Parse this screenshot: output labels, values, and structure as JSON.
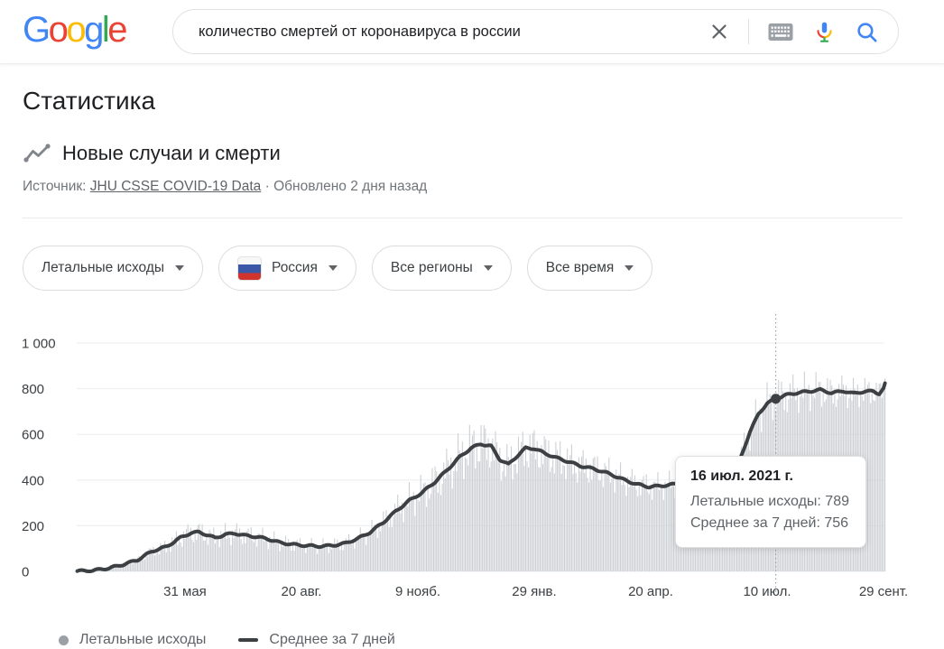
{
  "header": {
    "logo_letters": [
      {
        "ch": "G",
        "color": "#4285F4"
      },
      {
        "ch": "o",
        "color": "#EA4335"
      },
      {
        "ch": "o",
        "color": "#FBBC05"
      },
      {
        "ch": "g",
        "color": "#4285F4"
      },
      {
        "ch": "l",
        "color": "#34A853"
      },
      {
        "ch": "e",
        "color": "#EA4335"
      }
    ],
    "search": {
      "value": "количество смертей от коронавируса в россии"
    }
  },
  "page": {
    "title": "Статистика",
    "section_title": "Новые случаи и смерти",
    "source_prefix": "Источник:",
    "source_link": "JHU CSSE COVID-19 Data",
    "source_sep": "·",
    "updated": "Обновлено 2 дня назад"
  },
  "filters": [
    {
      "label": "Летальные исходы",
      "flag": false
    },
    {
      "label": "Россия",
      "flag": true
    },
    {
      "label": "Все регионы",
      "flag": false
    },
    {
      "label": "Все время",
      "flag": false
    }
  ],
  "flag_colors": {
    "white": "#f7f7f7",
    "blue": "#3a57a8",
    "red": "#d0342c"
  },
  "tooltip": {
    "date_label": "16 июл. 2021 г.",
    "rows": [
      {
        "label": "Летальные исходы",
        "value": "789"
      },
      {
        "label": "Среднее за 7 дней",
        "value": "756"
      }
    ]
  },
  "legend": [
    {
      "label": "Летальные исходы",
      "swatch": "dot",
      "color": "#9aa0a6"
    },
    {
      "label": "Среднее за 7 дней",
      "swatch": "line",
      "color": "#3c4043"
    }
  ],
  "chart_data": {
    "type": "area",
    "title": "Новые случаи и смерти (Летальные исходы, Россия, все время)",
    "ylim": [
      0,
      1000
    ],
    "yticks": [
      {
        "value": 0,
        "label": "0"
      },
      {
        "value": 200,
        "label": "200"
      },
      {
        "value": 400,
        "label": "400"
      },
      {
        "value": 600,
        "label": "600"
      },
      {
        "value": 800,
        "label": "800"
      },
      {
        "value": 1000,
        "label": "1 000"
      }
    ],
    "xticks": [
      {
        "label": "31 мая",
        "date": "2020-05-31"
      },
      {
        "label": "20 авг.",
        "date": "2020-08-20"
      },
      {
        "label": "9 нояб.",
        "date": "2020-11-09"
      },
      {
        "label": "29 янв.",
        "date": "2021-01-29"
      },
      {
        "label": "20 апр.",
        "date": "2021-04-20"
      },
      {
        "label": "10 июл.",
        "date": "2021-07-10"
      },
      {
        "label": "29 сент.",
        "date": "2021-09-29"
      }
    ],
    "x_range": [
      "2020-03-17",
      "2021-09-30"
    ],
    "series": [
      {
        "name": "Летальные исходы",
        "type": "bars",
        "color": "#ccd0d4"
      },
      {
        "name": "Среднее за 7 дней",
        "type": "line",
        "color": "#3c4043",
        "points": [
          [
            "2020-03-17",
            1
          ],
          [
            "2020-03-28",
            4
          ],
          [
            "2020-04-08",
            14
          ],
          [
            "2020-04-18",
            30
          ],
          [
            "2020-04-28",
            50
          ],
          [
            "2020-05-08",
            88
          ],
          [
            "2020-05-18",
            108
          ],
          [
            "2020-05-28",
            148
          ],
          [
            "2020-06-04",
            168
          ],
          [
            "2020-06-10",
            172
          ],
          [
            "2020-06-16",
            158
          ],
          [
            "2020-06-21",
            146
          ],
          [
            "2020-06-28",
            162
          ],
          [
            "2020-07-05",
            166
          ],
          [
            "2020-07-12",
            157
          ],
          [
            "2020-07-19",
            152
          ],
          [
            "2020-07-27",
            143
          ],
          [
            "2020-08-05",
            126
          ],
          [
            "2020-08-14",
            118
          ],
          [
            "2020-08-23",
            113
          ],
          [
            "2020-09-01",
            110
          ],
          [
            "2020-09-10",
            113
          ],
          [
            "2020-09-19",
            122
          ],
          [
            "2020-09-28",
            143
          ],
          [
            "2020-10-07",
            172
          ],
          [
            "2020-10-16",
            215
          ],
          [
            "2020-10-25",
            265
          ],
          [
            "2020-11-03",
            310
          ],
          [
            "2020-11-12",
            345
          ],
          [
            "2020-11-21",
            392
          ],
          [
            "2020-11-30",
            448
          ],
          [
            "2020-12-08",
            500
          ],
          [
            "2020-12-16",
            540
          ],
          [
            "2020-12-23",
            558
          ],
          [
            "2020-12-30",
            548
          ],
          [
            "2021-01-05",
            490
          ],
          [
            "2021-01-11",
            468
          ],
          [
            "2021-01-17",
            505
          ],
          [
            "2021-01-23",
            540
          ],
          [
            "2021-01-29",
            538
          ],
          [
            "2021-02-05",
            518
          ],
          [
            "2021-02-13",
            498
          ],
          [
            "2021-02-21",
            482
          ],
          [
            "2021-03-02",
            462
          ],
          [
            "2021-03-12",
            448
          ],
          [
            "2021-03-22",
            428
          ],
          [
            "2021-04-01",
            402
          ],
          [
            "2021-04-10",
            382
          ],
          [
            "2021-04-19",
            370
          ],
          [
            "2021-04-28",
            375
          ],
          [
            "2021-05-07",
            382
          ],
          [
            "2021-05-16",
            372
          ],
          [
            "2021-05-25",
            366
          ],
          [
            "2021-06-03",
            372
          ],
          [
            "2021-06-11",
            380
          ],
          [
            "2021-06-17",
            405
          ],
          [
            "2021-06-22",
            505
          ],
          [
            "2021-06-28",
            610
          ],
          [
            "2021-07-04",
            690
          ],
          [
            "2021-07-10",
            735
          ],
          [
            "2021-07-16",
            756
          ],
          [
            "2021-07-23",
            772
          ],
          [
            "2021-07-31",
            782
          ],
          [
            "2021-08-08",
            788
          ],
          [
            "2021-08-16",
            795
          ],
          [
            "2021-08-24",
            781
          ],
          [
            "2021-09-01",
            790
          ],
          [
            "2021-09-08",
            779
          ],
          [
            "2021-09-15",
            787
          ],
          [
            "2021-09-22",
            789
          ],
          [
            "2021-09-26",
            778
          ],
          [
            "2021-09-29",
            800
          ],
          [
            "2021-09-30",
            820
          ]
        ]
      }
    ],
    "highlight": {
      "date": "2021-07-16",
      "date_label": "16 июл. 2021 г.",
      "deaths": 789,
      "avg7": 756
    }
  }
}
